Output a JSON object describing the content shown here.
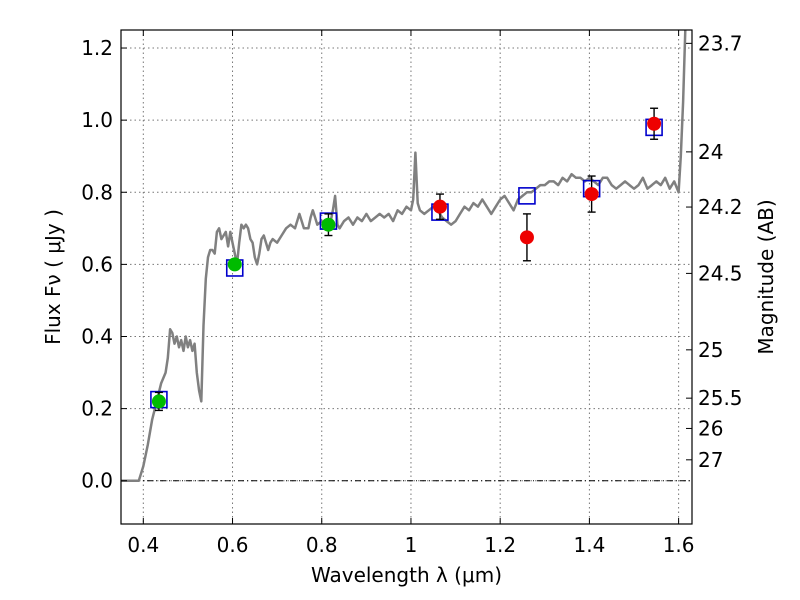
{
  "chart_data": {
    "type": "scatter",
    "xlabel": "Wavelength  λ (μm)",
    "ylabel": "Flux  Fν  ( μJy )",
    "ylabel_right": "Magnitude (AB)",
    "xlim": [
      0.35,
      1.63
    ],
    "ylim": [
      -0.12,
      1.25
    ],
    "x_ticks": [
      0.4,
      0.6,
      0.8,
      1.0,
      1.2,
      1.4,
      1.6
    ],
    "x_tick_labels": [
      "0.4",
      "0.6",
      "0.8",
      "1",
      "1.2",
      "1.4",
      "1.6"
    ],
    "y_ticks": [
      0.0,
      0.2,
      0.4,
      0.6,
      0.8,
      1.0,
      1.2
    ],
    "y_tick_labels": [
      "0.0",
      "0.2",
      "0.4",
      "0.6",
      "0.8",
      "1.0",
      "1.2"
    ],
    "right_ticks": [
      {
        "label": "23.7",
        "flux": 1.213
      },
      {
        "label": "24",
        "flux": 0.912
      },
      {
        "label": "24.2",
        "flux": 0.759
      },
      {
        "label": "24.5",
        "flux": 0.575
      },
      {
        "label": "25",
        "flux": 0.363
      },
      {
        "label": "25.5",
        "flux": 0.229
      },
      {
        "label": "26",
        "flux": 0.145
      },
      {
        "label": "27",
        "flux": 0.058
      }
    ],
    "grid": true,
    "zero_line": true,
    "colors": {
      "spectrum": "#808080",
      "model_box": "#0000cc",
      "green_points": "#00bb00",
      "red_points": "#ee0000",
      "errorbar": "#000000",
      "grid": "#777777"
    },
    "series": [
      {
        "kind": "line",
        "points": [
          [
            0.35,
            0.0
          ],
          [
            0.39,
            0.0
          ],
          [
            0.4,
            0.04
          ],
          [
            0.41,
            0.1
          ],
          [
            0.42,
            0.17
          ],
          [
            0.43,
            0.22
          ],
          [
            0.44,
            0.27
          ],
          [
            0.45,
            0.3
          ],
          [
            0.455,
            0.34
          ],
          [
            0.46,
            0.42
          ],
          [
            0.465,
            0.41
          ],
          [
            0.47,
            0.38
          ],
          [
            0.475,
            0.4
          ],
          [
            0.48,
            0.37
          ],
          [
            0.485,
            0.39
          ],
          [
            0.49,
            0.36
          ],
          [
            0.495,
            0.4
          ],
          [
            0.5,
            0.37
          ],
          [
            0.505,
            0.39
          ],
          [
            0.51,
            0.36
          ],
          [
            0.515,
            0.38
          ],
          [
            0.52,
            0.3
          ],
          [
            0.525,
            0.25
          ],
          [
            0.53,
            0.22
          ],
          [
            0.535,
            0.43
          ],
          [
            0.54,
            0.56
          ],
          [
            0.545,
            0.62
          ],
          [
            0.55,
            0.64
          ],
          [
            0.555,
            0.64
          ],
          [
            0.56,
            0.63
          ],
          [
            0.565,
            0.69
          ],
          [
            0.57,
            0.7
          ],
          [
            0.575,
            0.67
          ],
          [
            0.58,
            0.68
          ],
          [
            0.585,
            0.69
          ],
          [
            0.59,
            0.65
          ],
          [
            0.595,
            0.69
          ],
          [
            0.6,
            0.66
          ],
          [
            0.605,
            0.63
          ],
          [
            0.61,
            0.6
          ],
          [
            0.615,
            0.66
          ],
          [
            0.62,
            0.71
          ],
          [
            0.625,
            0.7
          ],
          [
            0.63,
            0.71
          ],
          [
            0.635,
            0.7
          ],
          [
            0.64,
            0.67
          ],
          [
            0.645,
            0.66
          ],
          [
            0.65,
            0.62
          ],
          [
            0.655,
            0.6
          ],
          [
            0.66,
            0.63
          ],
          [
            0.665,
            0.67
          ],
          [
            0.67,
            0.68
          ],
          [
            0.675,
            0.66
          ],
          [
            0.68,
            0.64
          ],
          [
            0.685,
            0.66
          ],
          [
            0.69,
            0.67
          ],
          [
            0.7,
            0.66
          ],
          [
            0.71,
            0.68
          ],
          [
            0.72,
            0.7
          ],
          [
            0.73,
            0.71
          ],
          [
            0.74,
            0.7
          ],
          [
            0.745,
            0.72
          ],
          [
            0.75,
            0.74
          ],
          [
            0.755,
            0.72
          ],
          [
            0.76,
            0.7
          ],
          [
            0.77,
            0.7
          ],
          [
            0.775,
            0.73
          ],
          [
            0.78,
            0.75
          ],
          [
            0.785,
            0.73
          ],
          [
            0.79,
            0.71
          ],
          [
            0.8,
            0.72
          ],
          [
            0.81,
            0.71
          ],
          [
            0.815,
            0.72
          ],
          [
            0.82,
            0.72
          ],
          [
            0.825,
            0.75
          ],
          [
            0.83,
            0.79
          ],
          [
            0.835,
            0.71
          ],
          [
            0.84,
            0.7
          ],
          [
            0.85,
            0.72
          ],
          [
            0.86,
            0.73
          ],
          [
            0.87,
            0.71
          ],
          [
            0.88,
            0.73
          ],
          [
            0.89,
            0.72
          ],
          [
            0.9,
            0.74
          ],
          [
            0.91,
            0.72
          ],
          [
            0.92,
            0.73
          ],
          [
            0.93,
            0.74
          ],
          [
            0.94,
            0.73
          ],
          [
            0.95,
            0.74
          ],
          [
            0.96,
            0.72
          ],
          [
            0.97,
            0.75
          ],
          [
            0.98,
            0.74
          ],
          [
            0.99,
            0.76
          ],
          [
            1.0,
            0.75
          ],
          [
            1.005,
            0.78
          ],
          [
            1.01,
            0.91
          ],
          [
            1.015,
            0.77
          ],
          [
            1.02,
            0.75
          ],
          [
            1.03,
            0.74
          ],
          [
            1.04,
            0.75
          ],
          [
            1.05,
            0.76
          ],
          [
            1.06,
            0.75
          ],
          [
            1.07,
            0.73
          ],
          [
            1.08,
            0.72
          ],
          [
            1.09,
            0.71
          ],
          [
            1.1,
            0.72
          ],
          [
            1.11,
            0.74
          ],
          [
            1.12,
            0.76
          ],
          [
            1.13,
            0.75
          ],
          [
            1.14,
            0.77
          ],
          [
            1.15,
            0.76
          ],
          [
            1.16,
            0.78
          ],
          [
            1.17,
            0.76
          ],
          [
            1.18,
            0.74
          ],
          [
            1.19,
            0.76
          ],
          [
            1.2,
            0.78
          ],
          [
            1.21,
            0.79
          ],
          [
            1.22,
            0.77
          ],
          [
            1.23,
            0.75
          ],
          [
            1.24,
            0.78
          ],
          [
            1.25,
            0.79
          ],
          [
            1.26,
            0.8
          ],
          [
            1.27,
            0.8
          ],
          [
            1.28,
            0.81
          ],
          [
            1.29,
            0.82
          ],
          [
            1.3,
            0.82
          ],
          [
            1.31,
            0.83
          ],
          [
            1.32,
            0.83
          ],
          [
            1.33,
            0.82
          ],
          [
            1.34,
            0.84
          ],
          [
            1.35,
            0.83
          ],
          [
            1.36,
            0.85
          ],
          [
            1.37,
            0.84
          ],
          [
            1.38,
            0.84
          ],
          [
            1.39,
            0.83
          ],
          [
            1.4,
            0.84
          ],
          [
            1.41,
            0.83
          ],
          [
            1.42,
            0.82
          ],
          [
            1.43,
            0.84
          ],
          [
            1.44,
            0.84
          ],
          [
            1.45,
            0.82
          ],
          [
            1.46,
            0.81
          ],
          [
            1.47,
            0.82
          ],
          [
            1.48,
            0.83
          ],
          [
            1.49,
            0.82
          ],
          [
            1.5,
            0.81
          ],
          [
            1.51,
            0.82
          ],
          [
            1.52,
            0.84
          ],
          [
            1.53,
            0.81
          ],
          [
            1.54,
            0.82
          ],
          [
            1.55,
            0.83
          ],
          [
            1.56,
            0.82
          ],
          [
            1.57,
            0.84
          ],
          [
            1.58,
            0.81
          ],
          [
            1.59,
            0.83
          ],
          [
            1.6,
            0.8
          ],
          [
            1.605,
            0.9
          ],
          [
            1.61,
            1.05
          ],
          [
            1.615,
            1.25
          ]
        ]
      },
      {
        "kind": "model_boxes",
        "points": [
          [
            0.435,
            0.225
          ],
          [
            0.605,
            0.59
          ],
          [
            0.815,
            0.72
          ],
          [
            1.065,
            0.745
          ],
          [
            1.26,
            0.79
          ],
          [
            1.405,
            0.81
          ],
          [
            1.545,
            0.98
          ]
        ]
      },
      {
        "kind": "green_points",
        "points": [
          {
            "x": 0.435,
            "y": 0.22,
            "err": 0.025
          },
          {
            "x": 0.605,
            "y": 0.6,
            "err": 0.013
          },
          {
            "x": 0.815,
            "y": 0.71,
            "err": 0.03
          }
        ]
      },
      {
        "kind": "red_points",
        "points": [
          {
            "x": 1.065,
            "y": 0.76,
            "err": 0.035
          },
          {
            "x": 1.26,
            "y": 0.675,
            "err": 0.065
          },
          {
            "x": 1.405,
            "y": 0.795,
            "err": 0.05
          },
          {
            "x": 1.545,
            "y": 0.99,
            "err": 0.043
          }
        ]
      }
    ]
  }
}
